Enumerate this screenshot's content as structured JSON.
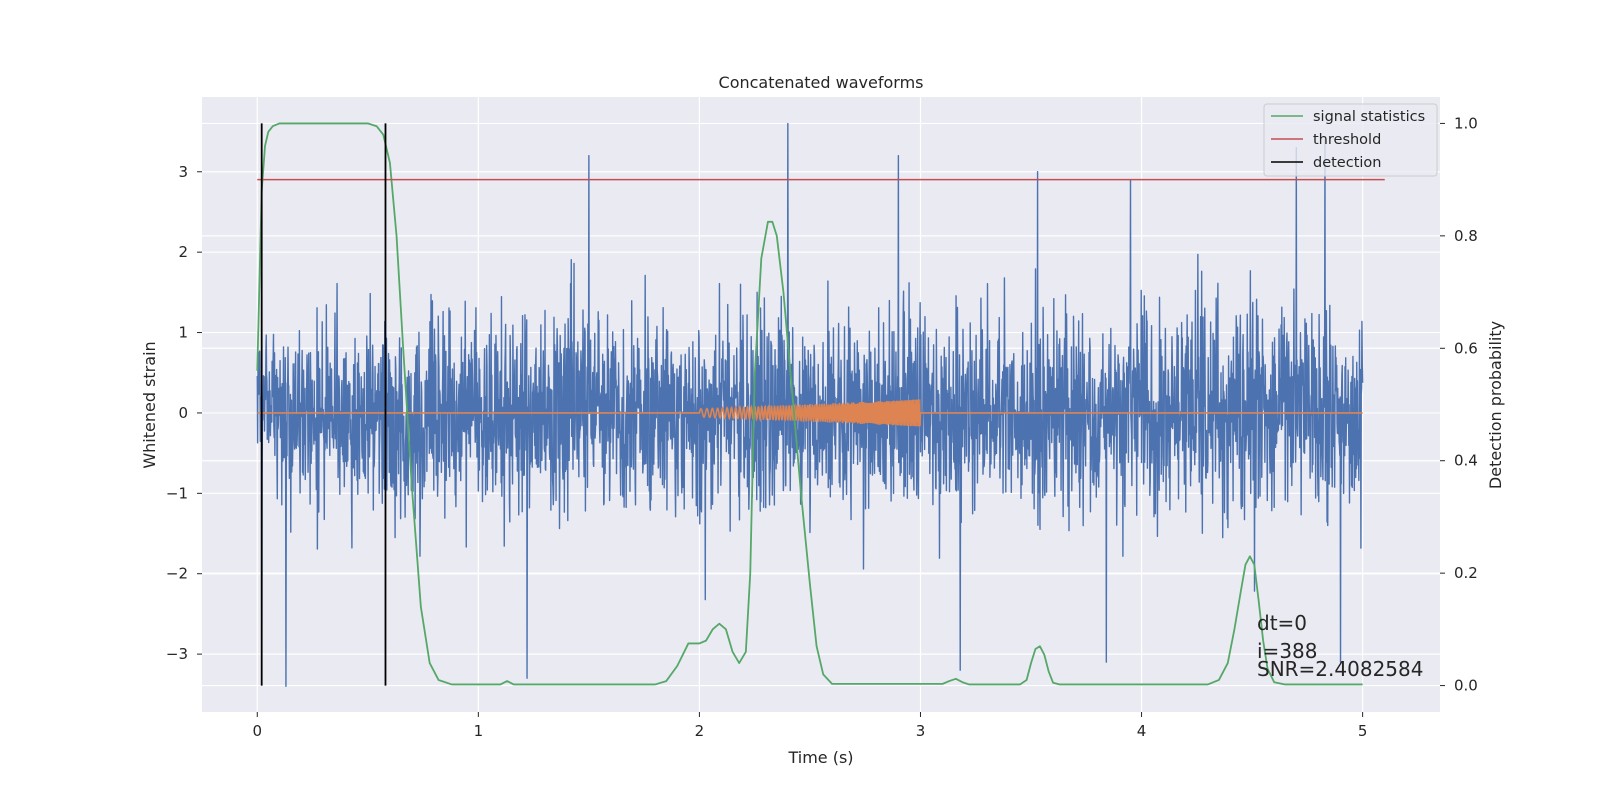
{
  "chart_data": {
    "type": "line",
    "title": "Concatenated waveforms",
    "xlabel": "Time (s)",
    "ylabel_left": "Whitened strain",
    "ylabel_right": "Detection probability",
    "xlim": [
      -0.25,
      5.35
    ],
    "ylim_left": [
      -3.72,
      3.93
    ],
    "ylim_right": [
      -0.047,
      1.047
    ],
    "x_ticks": [
      0,
      1,
      2,
      3,
      4,
      5
    ],
    "x_tick_labels": [
      "0",
      "1",
      "2",
      "3",
      "4",
      "5"
    ],
    "y_left_ticks": [
      3,
      2,
      1,
      0,
      -1,
      -2,
      -3
    ],
    "y_left_tick_labels": [
      "3",
      "2",
      "1",
      "0",
      "−1",
      "−2",
      "−3"
    ],
    "y_right_ticks": [
      1.0,
      0.8,
      0.6,
      0.4,
      0.2,
      0.0
    ],
    "y_right_tick_labels": [
      "1.0",
      "0.8",
      "0.6",
      "0.4",
      "0.2",
      "0.0"
    ],
    "grid": true,
    "background": "#eaeaf2",
    "legend_location": "upper right",
    "legend": [
      {
        "label": "signal statistics",
        "color": "#55a868"
      },
      {
        "label": "threshold",
        "color": "#c44e52"
      },
      {
        "label": "detection",
        "color": "#000000"
      }
    ],
    "series": [
      {
        "name": "whitened strain noise",
        "axis": "left",
        "color": "#4c72b0",
        "x_range": [
          0,
          5
        ],
        "envelope": [
          [
            0,
            1.8
          ],
          [
            0.5,
            2.4
          ],
          [
            1,
            2.4
          ],
          [
            1.5,
            2.3
          ],
          [
            2,
            2.3
          ],
          [
            2.5,
            2.4
          ],
          [
            3,
            2.4
          ],
          [
            3.5,
            2.3
          ],
          [
            4,
            2.6
          ],
          [
            4.5,
            2.5
          ],
          [
            5,
            2.0
          ]
        ],
        "peaks": [
          {
            "x": 0.13,
            "y": -3.4
          },
          {
            "x": 0.02,
            "y": -3.2
          },
          {
            "x": 1.22,
            "y": -3.3
          },
          {
            "x": 1.5,
            "y": 3.2
          },
          {
            "x": 2.4,
            "y": 3.6
          },
          {
            "x": 2.9,
            "y": 3.2
          },
          {
            "x": 3.18,
            "y": -3.2
          },
          {
            "x": 3.53,
            "y": 3.0
          },
          {
            "x": 3.84,
            "y": -3.1
          },
          {
            "x": 3.95,
            "y": 2.9
          },
          {
            "x": 4.7,
            "y": 3.3
          },
          {
            "x": 4.83,
            "y": 3.4
          },
          {
            "x": 4.9,
            "y": -3.1
          }
        ]
      },
      {
        "name": "injected waveform",
        "axis": "left",
        "color": "#dd8452",
        "x_range": [
          0,
          5
        ],
        "chirp_start": 2.0,
        "chirp_end": 3.0,
        "amplitude_start": 0.05,
        "amplitude_end": 0.17
      },
      {
        "name": "signal statistics",
        "axis": "right",
        "color": "#55a868",
        "points": [
          [
            0,
            0.56
          ],
          [
            0.01,
            0.72
          ],
          [
            0.02,
            0.88
          ],
          [
            0.035,
            0.96
          ],
          [
            0.05,
            0.985
          ],
          [
            0.07,
            0.995
          ],
          [
            0.1,
            1.0
          ],
          [
            0.5,
            1.0
          ],
          [
            0.54,
            0.995
          ],
          [
            0.57,
            0.98
          ],
          [
            0.6,
            0.93
          ],
          [
            0.63,
            0.8
          ],
          [
            0.66,
            0.6
          ],
          [
            0.7,
            0.35
          ],
          [
            0.74,
            0.14
          ],
          [
            0.78,
            0.04
          ],
          [
            0.82,
            0.01
          ],
          [
            0.88,
            0.002
          ],
          [
            1.1,
            0.002
          ],
          [
            1.13,
            0.008
          ],
          [
            1.16,
            0.002
          ],
          [
            1.8,
            0.002
          ],
          [
            1.85,
            0.008
          ],
          [
            1.9,
            0.035
          ],
          [
            1.95,
            0.075
          ],
          [
            2.0,
            0.075
          ],
          [
            2.03,
            0.08
          ],
          [
            2.06,
            0.1
          ],
          [
            2.09,
            0.11
          ],
          [
            2.12,
            0.1
          ],
          [
            2.15,
            0.06
          ],
          [
            2.18,
            0.04
          ],
          [
            2.21,
            0.06
          ],
          [
            2.23,
            0.2
          ],
          [
            2.25,
            0.55
          ],
          [
            2.28,
            0.76
          ],
          [
            2.31,
            0.825
          ],
          [
            2.33,
            0.825
          ],
          [
            2.35,
            0.8
          ],
          [
            2.38,
            0.7
          ],
          [
            2.42,
            0.52
          ],
          [
            2.46,
            0.34
          ],
          [
            2.5,
            0.18
          ],
          [
            2.53,
            0.07
          ],
          [
            2.56,
            0.02
          ],
          [
            2.6,
            0.003
          ],
          [
            3.1,
            0.003
          ],
          [
            3.13,
            0.008
          ],
          [
            3.16,
            0.012
          ],
          [
            3.19,
            0.006
          ],
          [
            3.22,
            0.002
          ],
          [
            3.45,
            0.002
          ],
          [
            3.48,
            0.01
          ],
          [
            3.5,
            0.04
          ],
          [
            3.52,
            0.065
          ],
          [
            3.54,
            0.07
          ],
          [
            3.56,
            0.055
          ],
          [
            3.58,
            0.025
          ],
          [
            3.6,
            0.005
          ],
          [
            3.63,
            0.002
          ],
          [
            4.3,
            0.002
          ],
          [
            4.35,
            0.01
          ],
          [
            4.39,
            0.04
          ],
          [
            4.42,
            0.1
          ],
          [
            4.45,
            0.17
          ],
          [
            4.47,
            0.215
          ],
          [
            4.49,
            0.23
          ],
          [
            4.51,
            0.215
          ],
          [
            4.53,
            0.15
          ],
          [
            4.55,
            0.08
          ],
          [
            4.57,
            0.03
          ],
          [
            4.6,
            0.006
          ],
          [
            4.65,
            0.002
          ],
          [
            5.0,
            0.002
          ]
        ]
      },
      {
        "name": "threshold",
        "axis": "right",
        "color": "#c44e52",
        "points": [
          [
            0,
            0.9
          ],
          [
            5.1,
            0.9
          ]
        ]
      },
      {
        "name": "detection",
        "axis": "right",
        "color": "#000000",
        "vlines": [
          0.02,
          0.58
        ],
        "ymin": 0.0,
        "ymax": 1.0
      }
    ],
    "annotations": [
      "dt=0",
      "i=388",
      "SNR=2.4082584"
    ]
  }
}
